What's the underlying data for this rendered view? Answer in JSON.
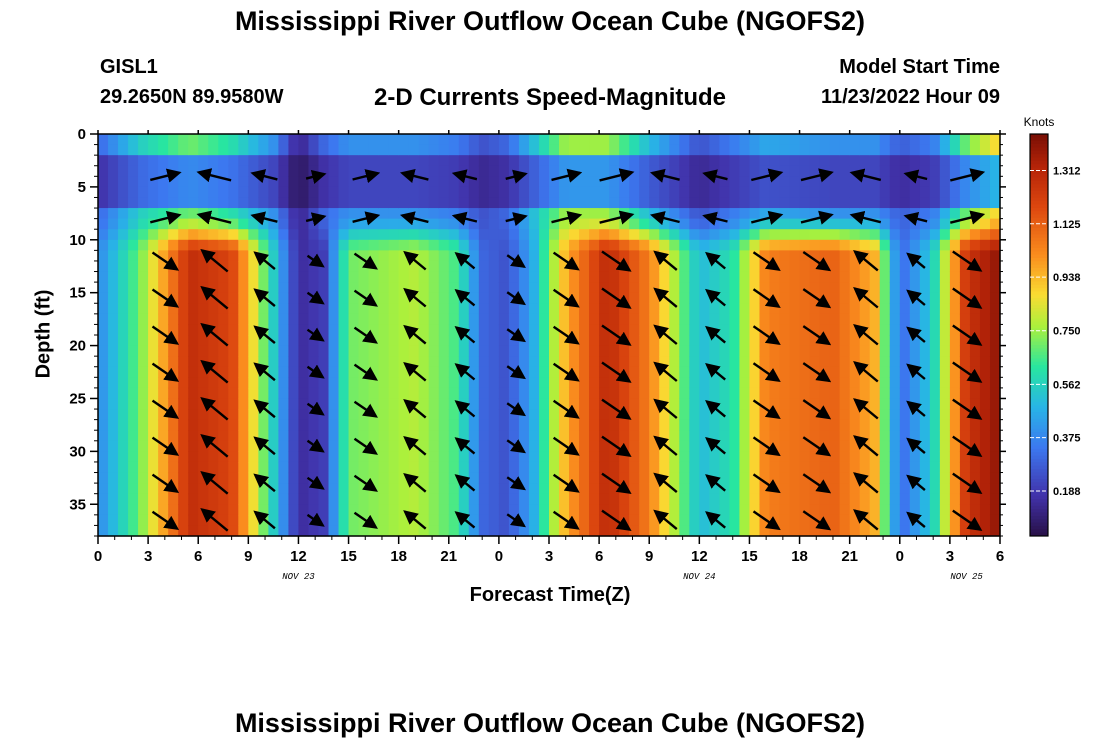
{
  "chart_data": {
    "type": "heatmap",
    "title": "Mississippi River Outflow Ocean Cube (NGOFS2)",
    "subtitle": "2-D Currents Speed-Magnitude",
    "station": "GISL1",
    "location": "29.2650N  89.9580W",
    "start_label": "Model Start Time",
    "start_value": "11/23/2022 Hour 09",
    "xlabel": "Forecast Time(Z)",
    "ylabel": "Depth (ft)",
    "colorbar_label": "Knots",
    "x_ticks": [
      "0",
      "3",
      "6",
      "9",
      "12",
      "15",
      "18",
      "21",
      "0",
      "3",
      "6",
      "9",
      "12",
      "15",
      "18",
      "21",
      "0",
      "3",
      "6"
    ],
    "x_range_hours": [
      0,
      54
    ],
    "date_labels": [
      {
        "text": "NOV 23",
        "hour": 12
      },
      {
        "text": "NOV 24",
        "hour": 36
      },
      {
        "text": "NOV 25",
        "hour": 52
      }
    ],
    "y_ticks": [
      0,
      5,
      10,
      15,
      20,
      25,
      30,
      35
    ],
    "ylim": [
      0,
      38
    ],
    "colorbar_ticks": [
      "0.188",
      "0.375",
      "0.562",
      "0.750",
      "0.938",
      "1.125",
      "1.312"
    ],
    "colorbar_range": [
      0.03,
      1.44
    ],
    "speed_profile": {
      "hours": [
        0,
        2.5,
        5.5,
        8,
        10.5,
        12,
        13.5,
        15,
        19,
        21.5,
        23,
        24.5,
        26,
        28,
        30.5,
        33,
        36,
        38,
        40,
        44,
        46.5,
        48,
        50,
        52,
        54
      ],
      "deep_knots": [
        0.38,
        0.7,
        1.28,
        1.2,
        0.55,
        0.15,
        0.2,
        0.7,
        0.78,
        0.65,
        0.3,
        0.25,
        0.45,
        0.95,
        1.3,
        1.05,
        0.5,
        0.6,
        1.05,
        1.12,
        0.95,
        0.3,
        0.55,
        1.25,
        1.4
      ],
      "surface_knots": [
        0.3,
        0.55,
        0.7,
        0.6,
        0.4,
        0.12,
        0.3,
        0.4,
        0.4,
        0.35,
        0.25,
        0.3,
        0.5,
        0.75,
        0.75,
        0.5,
        0.25,
        0.35,
        0.45,
        0.4,
        0.4,
        0.28,
        0.35,
        0.7,
        0.9
      ]
    }
  }
}
